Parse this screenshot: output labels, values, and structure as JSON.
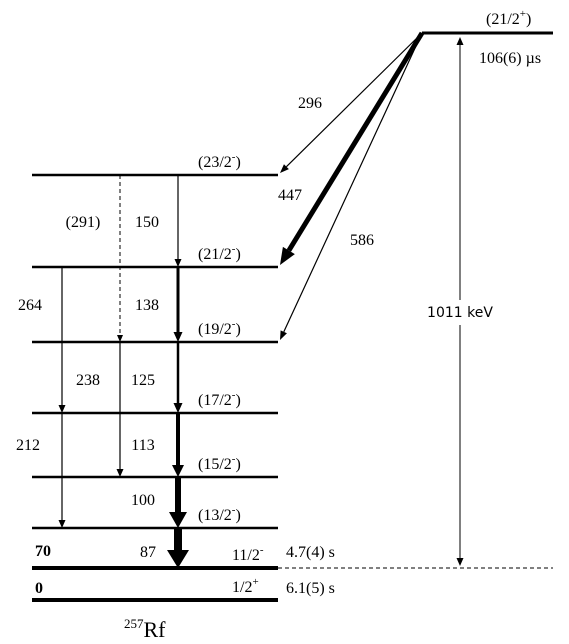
{
  "isomer": {
    "label": {
      "pre": "(21/2",
      "parity": "+",
      "post": ")"
    },
    "half_life": "106(6) µs"
  },
  "levels": [
    {
      "label": {
        "pre": "(23/2",
        "parity": "-",
        "post": ")"
      }
    },
    {
      "label": {
        "pre": "(21/2",
        "parity": "-",
        "post": ")"
      }
    },
    {
      "label": {
        "pre": "(19/2",
        "parity": "-",
        "post": ")"
      }
    },
    {
      "label": {
        "pre": "(17/2",
        "parity": "-",
        "post": ")"
      }
    },
    {
      "label": {
        "pre": "(15/2",
        "parity": "-",
        "post": ")"
      }
    },
    {
      "label": {
        "pre": "(13/2",
        "parity": "-",
        "post": ")"
      }
    },
    {
      "energy": 70,
      "label": {
        "pre": "11/2",
        "parity": "-"
      },
      "half_life": "4.7(4) s"
    },
    {
      "energy": 0,
      "label": {
        "pre": "1/2",
        "parity": "+"
      },
      "half_life": "6.1(5) s"
    }
  ],
  "transitions": [
    {
      "energy": 296
    },
    {
      "energy": 447
    },
    {
      "energy": 586
    },
    {
      "energy": "(291)"
    },
    {
      "energy": 150
    },
    {
      "energy": 264
    },
    {
      "energy": 138
    },
    {
      "energy": 238
    },
    {
      "energy": 125
    },
    {
      "energy": 212
    },
    {
      "energy": 113
    },
    {
      "energy": 100
    },
    {
      "energy": 87
    }
  ],
  "isomer_energy": "1011 keV",
  "nucleus": {
    "mass": "257",
    "symbol": "Rf"
  }
}
